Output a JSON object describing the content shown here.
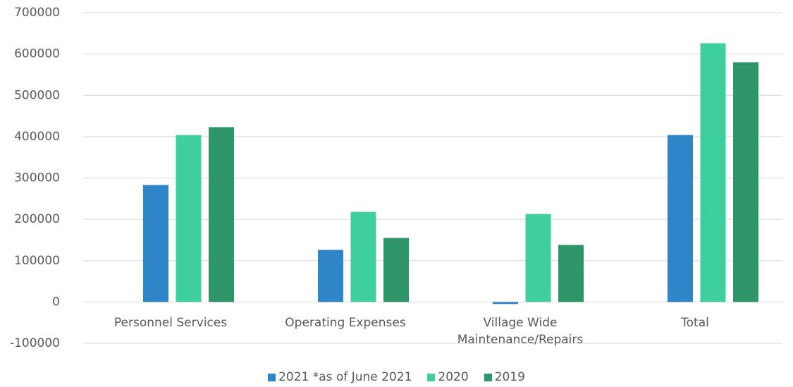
{
  "chart_data": {
    "type": "bar",
    "categories": [
      "Personnel Services",
      "Operating Expenses",
      "Village Wide Maintenance/Repairs",
      "Total"
    ],
    "series": [
      {
        "name": "2021 *as of June 2021",
        "color": "#2e86c8",
        "values": [
          283000,
          126000,
          -5000,
          404000
        ]
      },
      {
        "name": "2020",
        "color": "#3fcf9e",
        "values": [
          404000,
          218000,
          213000,
          626000
        ]
      },
      {
        "name": "2019",
        "color": "#2e9669",
        "values": [
          423000,
          155000,
          138000,
          580000
        ]
      }
    ],
    "ylim": [
      -100000,
      700000
    ],
    "yticks": [
      -100000,
      0,
      100000,
      200000,
      300000,
      400000,
      500000,
      600000,
      700000
    ],
    "grid": true,
    "legend": "bottom"
  }
}
